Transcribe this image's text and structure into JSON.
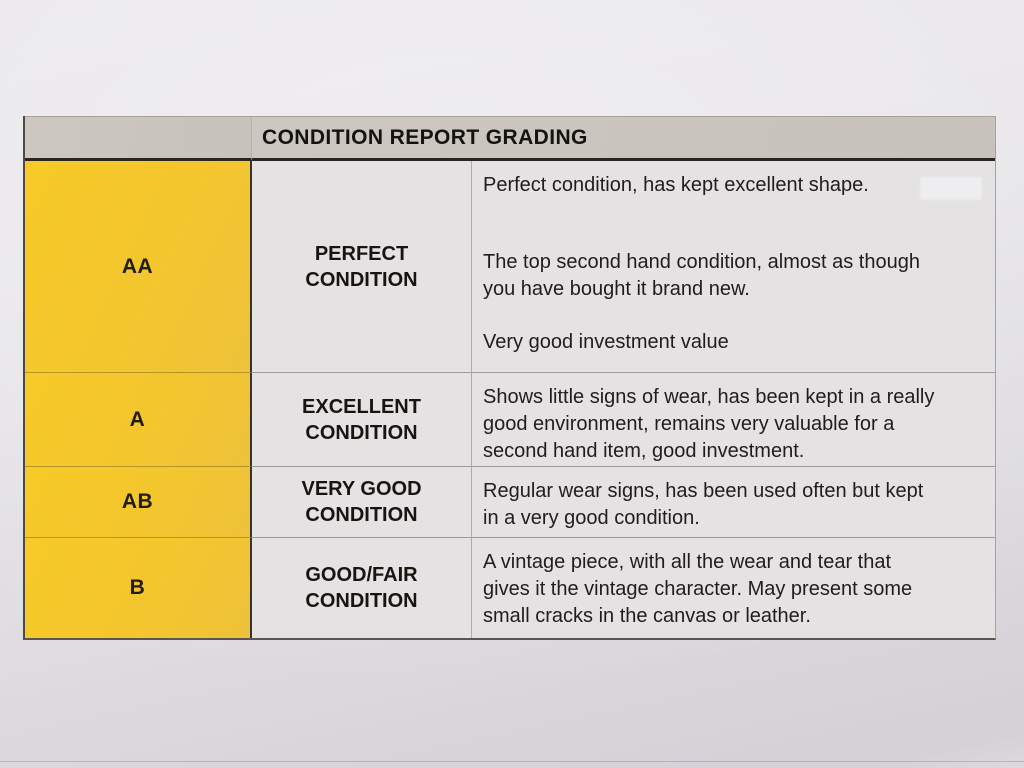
{
  "table": {
    "title": "CONDITION REPORT GRADING",
    "rows": [
      {
        "grade": "AA",
        "condition": "PERFECT\nCONDITION",
        "paragraphs": [
          "Perfect condition, has kept excellent shape.",
          "The top second hand condition, almost as though\nyou have bought it brand new.",
          "Very good investment value"
        ]
      },
      {
        "grade": "A",
        "condition": "EXCELLENT\nCONDITION",
        "paragraphs": [
          "Shows little signs of wear, has been kept in a really\ngood environment, remains very valuable for a\nsecond hand item, good investment."
        ]
      },
      {
        "grade": "AB",
        "condition": "VERY GOOD\nCONDITION",
        "paragraphs": [
          "Regular wear signs, has been used often but kept\nin a very good condition."
        ]
      },
      {
        "grade": "B",
        "condition": "GOOD/FAIR\nCONDITION",
        "paragraphs": [
          "A vintage piece, with all the wear and tear that\ngives it the vintage character. May present some\nsmall cracks in the canvas or leather."
        ]
      }
    ]
  },
  "colors": {
    "grade_column_yellow": "#f4c62e",
    "header_band_gray": "#c9c4bd",
    "cell_background": "#e4e2e3",
    "paper_background": "#e5e3e7",
    "text": "#1b1916"
  }
}
